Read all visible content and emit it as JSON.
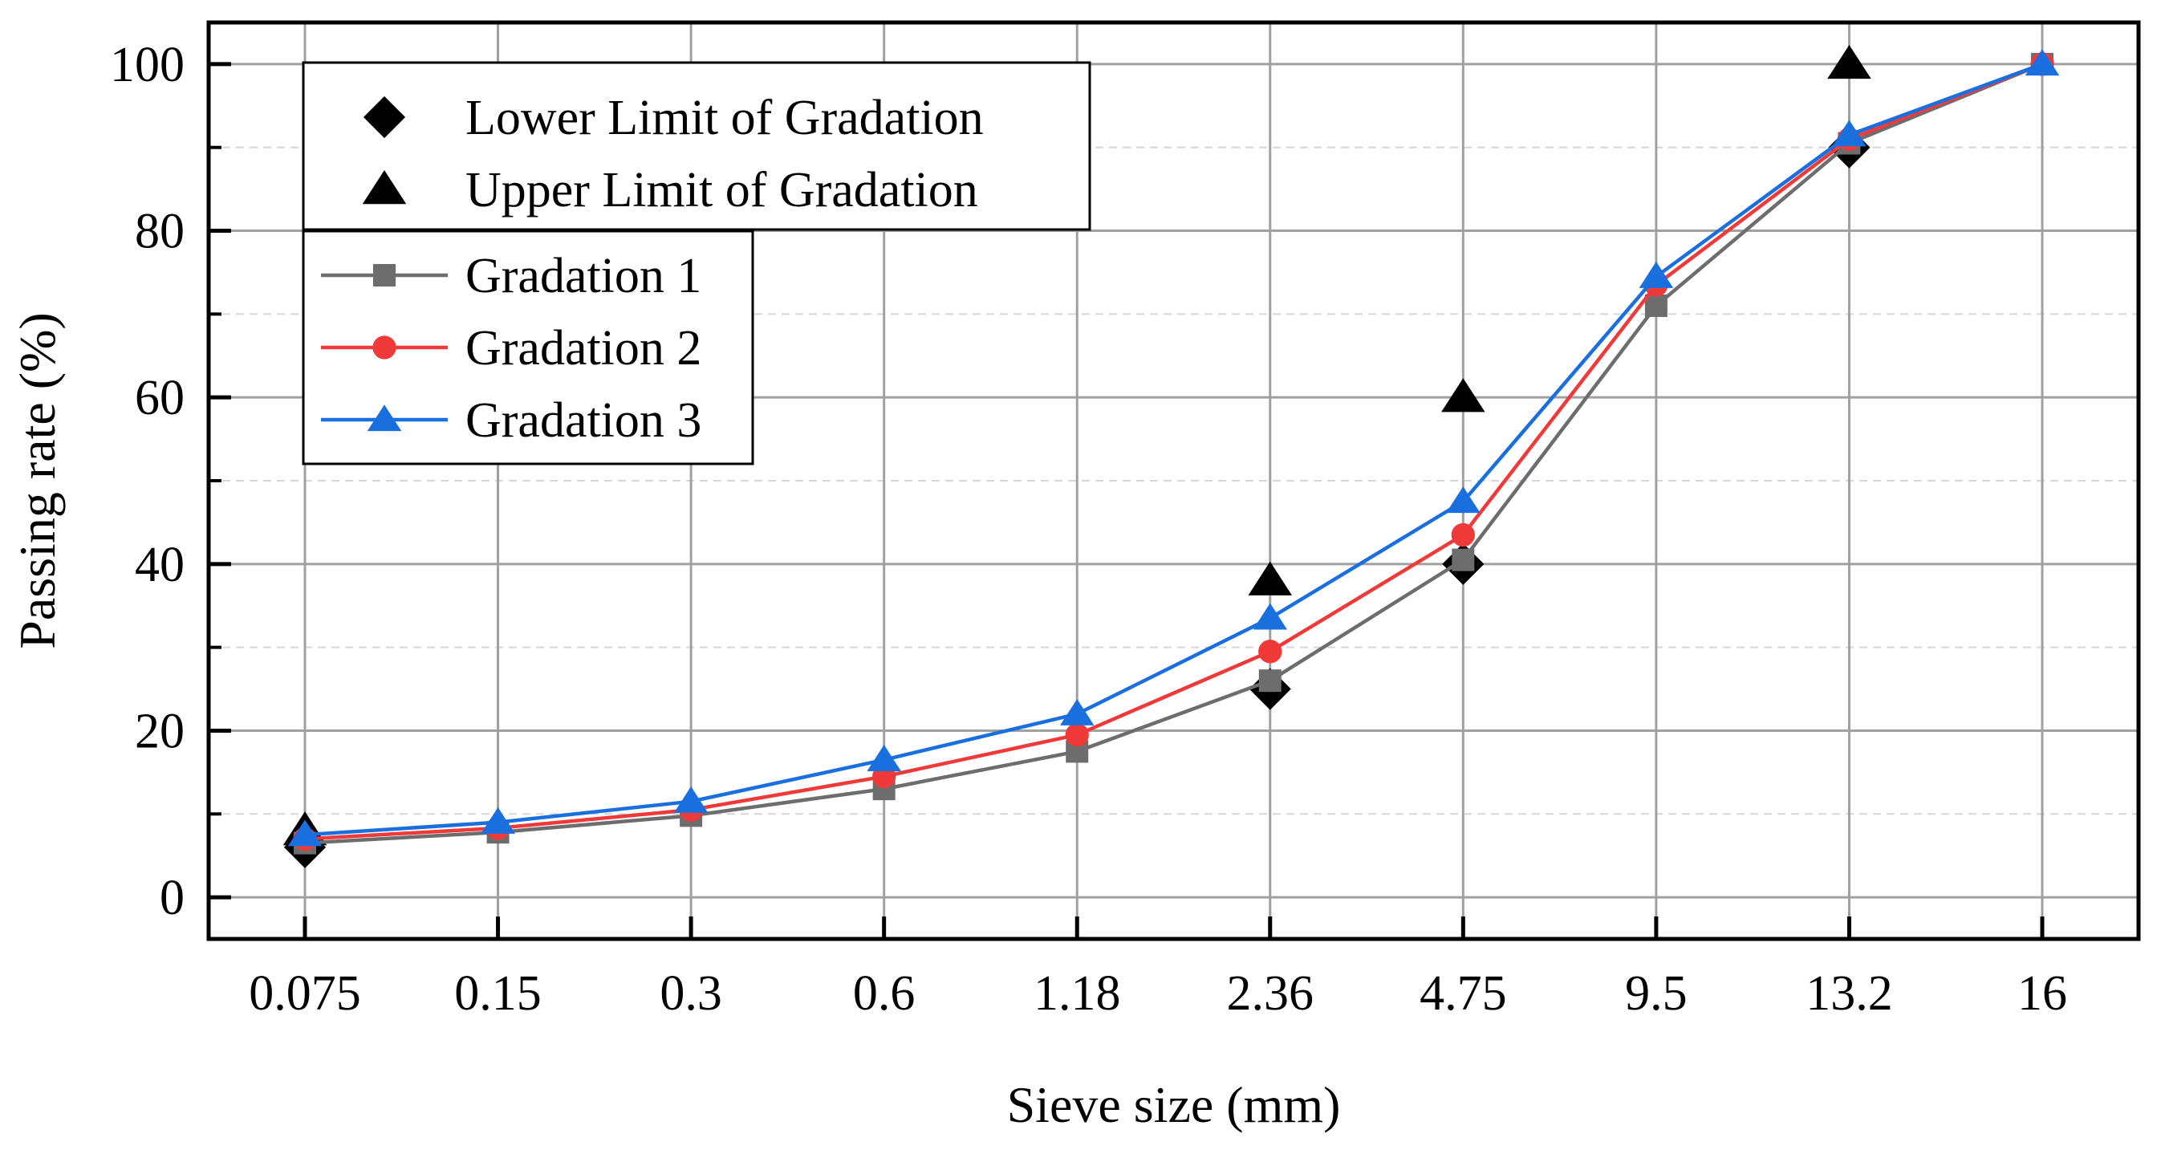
{
  "chart_data": {
    "type": "line",
    "xlabel": "Sieve size (mm)",
    "ylabel": "Passing rate (%)",
    "categories": [
      "0.075",
      "0.15",
      "0.3",
      "0.6",
      "1.18",
      "2.36",
      "4.75",
      "9.5",
      "13.2",
      "16"
    ],
    "ylim": [
      -5,
      105
    ],
    "yticks": [
      0,
      20,
      40,
      60,
      80,
      100
    ],
    "yticks_minor": [
      10,
      30,
      50,
      70,
      90
    ],
    "grid": true,
    "legend_position": "top-left",
    "series": [
      {
        "name": "Lower Limit of Gradation",
        "marker": "diamond",
        "line": false,
        "color": "#000000",
        "values": [
          6,
          null,
          null,
          null,
          null,
          25,
          40,
          null,
          90,
          null
        ]
      },
      {
        "name": "Upper Limit of Gradation",
        "marker": "triangle",
        "line": false,
        "color": "#000000",
        "values": [
          8,
          null,
          null,
          null,
          null,
          38,
          60,
          null,
          100,
          null
        ]
      },
      {
        "name": "Gradation 1",
        "marker": "square",
        "line": true,
        "color": "#6d6d6d",
        "values": [
          6.5,
          7.8,
          9.8,
          13.0,
          17.5,
          26.0,
          40.5,
          71.0,
          90.5,
          100
        ]
      },
      {
        "name": "Gradation 2",
        "marker": "circle",
        "line": true,
        "color": "#f03a3a",
        "values": [
          7.0,
          8.3,
          10.5,
          14.5,
          19.5,
          29.5,
          43.5,
          73.5,
          91.0,
          100
        ]
      },
      {
        "name": "Gradation 3",
        "marker": "triangle",
        "line": true,
        "color": "#1a6fdf",
        "values": [
          7.5,
          9.0,
          11.5,
          16.5,
          22.0,
          33.5,
          47.5,
          74.5,
          91.5,
          100
        ]
      }
    ]
  }
}
